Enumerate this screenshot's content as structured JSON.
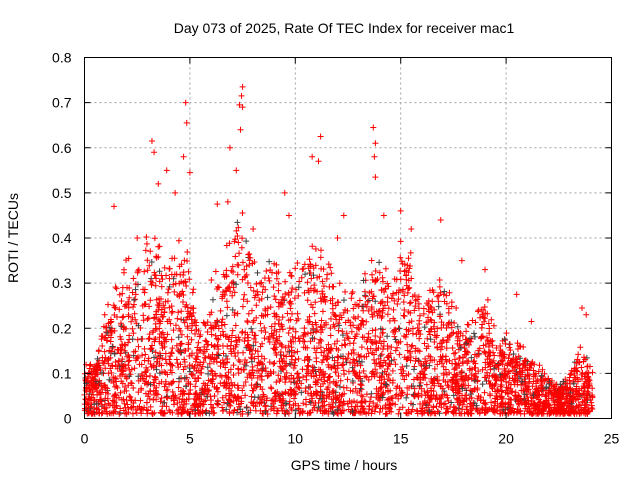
{
  "chart_data": {
    "type": "scatter",
    "title": "Day 073 of 2025, Rate Of TEC Index for receiver mac1",
    "xlabel": "GPS time / hours",
    "ylabel": "ROTI / TECUs",
    "xlim": [
      0,
      25
    ],
    "ylim": [
      0,
      0.8
    ],
    "xticks": [
      "0",
      "5",
      "10",
      "15",
      "20",
      "25"
    ],
    "xtick_values": [
      0,
      5,
      10,
      15,
      20,
      25
    ],
    "yticks": [
      "0",
      "0.1",
      "0.2",
      "0.3",
      "0.4",
      "0.5",
      "0.6",
      "0.7",
      "0.8"
    ],
    "ytick_values": [
      0,
      0.1,
      0.2,
      0.3,
      0.4,
      0.5,
      0.6,
      0.7,
      0.8
    ],
    "grid": true,
    "marker": "+",
    "colors": {
      "primary": "#ff0000",
      "secondary": "#404040",
      "grid": "#a0a0a0"
    },
    "dense_band_upper_envelope": {
      "x": [
        0,
        0.5,
        1,
        1.5,
        2,
        2.5,
        3,
        3.5,
        4,
        4.5,
        5,
        5.5,
        6,
        6.5,
        7,
        7.5,
        8,
        8.5,
        9,
        9.5,
        10,
        10.5,
        11,
        11.5,
        12,
        12.5,
        13,
        13.5,
        14,
        14.5,
        15,
        15.5,
        16,
        16.5,
        17,
        17.5,
        18,
        18.5,
        19,
        19.5,
        20,
        20.5,
        21,
        21.5,
        22,
        22.5,
        23,
        23.5,
        24
      ],
      "y": [
        0.1,
        0.1,
        0.2,
        0.25,
        0.3,
        0.3,
        0.35,
        0.35,
        0.3,
        0.35,
        0.3,
        0.15,
        0.25,
        0.3,
        0.35,
        0.4,
        0.3,
        0.3,
        0.3,
        0.28,
        0.3,
        0.35,
        0.35,
        0.3,
        0.25,
        0.25,
        0.25,
        0.3,
        0.3,
        0.3,
        0.35,
        0.3,
        0.22,
        0.25,
        0.3,
        0.2,
        0.2,
        0.2,
        0.25,
        0.15,
        0.15,
        0.15,
        0.12,
        0.1,
        0.08,
        0.06,
        0.08,
        0.15,
        0.1
      ]
    },
    "outliers": [
      [
        4.8,
        0.7
      ],
      [
        4.85,
        0.655
      ],
      [
        7.5,
        0.735
      ],
      [
        7.45,
        0.715
      ],
      [
        7.35,
        0.695
      ],
      [
        7.5,
        0.69
      ],
      [
        7.4,
        0.64
      ],
      [
        3.2,
        0.615
      ],
      [
        3.3,
        0.59
      ],
      [
        6.9,
        0.6
      ],
      [
        11.2,
        0.625
      ],
      [
        10.8,
        0.58
      ],
      [
        13.7,
        0.645
      ],
      [
        13.8,
        0.61
      ],
      [
        13.75,
        0.58
      ],
      [
        13.8,
        0.535
      ],
      [
        3.9,
        0.55
      ],
      [
        4.3,
        0.5
      ],
      [
        5.0,
        0.545
      ],
      [
        6.3,
        0.475
      ],
      [
        1.4,
        0.47
      ],
      [
        15.0,
        0.46
      ],
      [
        16.9,
        0.44
      ],
      [
        17.9,
        0.35
      ],
      [
        19.0,
        0.33
      ],
      [
        20.5,
        0.275
      ],
      [
        23.6,
        0.245
      ],
      [
        23.8,
        0.23
      ],
      [
        21.2,
        0.215
      ],
      [
        2.5,
        0.4
      ],
      [
        9.5,
        0.5
      ],
      [
        9.7,
        0.45
      ],
      [
        12.3,
        0.45
      ],
      [
        14.2,
        0.45
      ],
      [
        15.5,
        0.42
      ],
      [
        12.0,
        0.4
      ],
      [
        4.7,
        0.58
      ],
      [
        3.5,
        0.52
      ],
      [
        7.2,
        0.55
      ],
      [
        11.1,
        0.57
      ],
      [
        8.0,
        0.42
      ],
      [
        6.8,
        0.48
      ]
    ]
  }
}
